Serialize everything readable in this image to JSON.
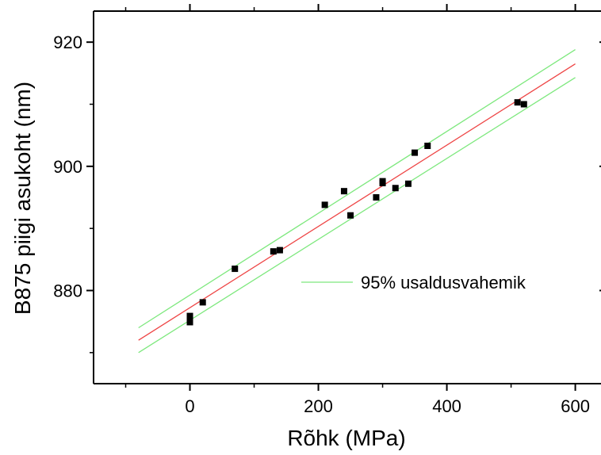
{
  "chart_data": {
    "type": "scatter",
    "title": "",
    "xlabel": "Rõhk (MPa)",
    "ylabel": "B875 piigi asukoht (nm)",
    "xlim": [
      -150,
      640
    ],
    "ylim": [
      865,
      925
    ],
    "x_ticks": [
      0,
      200,
      400,
      600
    ],
    "y_ticks": [
      880,
      900,
      920
    ],
    "grid": false,
    "series": [
      {
        "kind": "points",
        "color": "#000000",
        "points": [
          [
            0,
            874.9
          ],
          [
            0,
            875.9
          ],
          [
            20,
            878.1
          ],
          [
            70,
            883.5
          ],
          [
            130,
            886.3
          ],
          [
            140,
            886.5
          ],
          [
            210,
            893.8
          ],
          [
            240,
            896.0
          ],
          [
            250,
            892.1
          ],
          [
            290,
            895.0
          ],
          [
            300,
            897.3
          ],
          [
            300,
            897.6
          ],
          [
            320,
            896.5
          ],
          [
            340,
            897.2
          ],
          [
            350,
            902.2
          ],
          [
            370,
            903.3
          ],
          [
            510,
            910.3
          ],
          [
            520,
            910.0
          ]
        ]
      },
      {
        "kind": "fit",
        "color": "#ee4444",
        "x": [
          -80,
          600
        ],
        "y": [
          872.0,
          916.5
        ]
      },
      {
        "kind": "upper-band",
        "color": "#7de87d",
        "x": [
          -80,
          600
        ],
        "y": [
          874.0,
          918.8
        ]
      },
      {
        "kind": "lower-band",
        "color": "#7de87d",
        "x": [
          -80,
          600
        ],
        "y": [
          870.0,
          914.3
        ]
      }
    ],
    "legend": {
      "position": "center-right",
      "entries": [
        {
          "label": "95% usaldusvahemik",
          "color": "#7de87d"
        }
      ]
    }
  }
}
